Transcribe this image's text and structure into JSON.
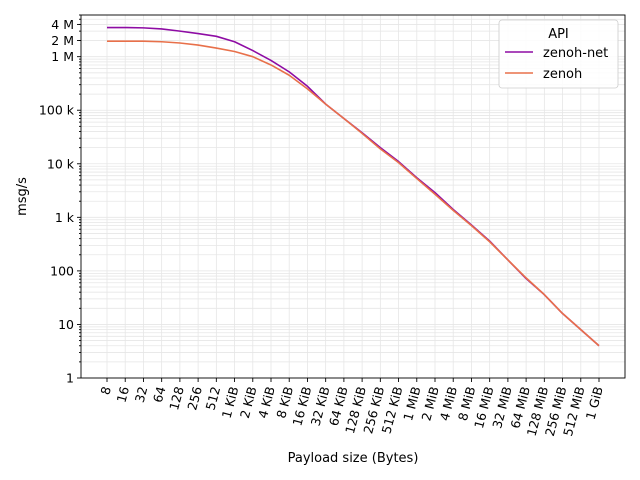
{
  "chart_data": {
    "type": "line",
    "title": "",
    "xlabel": "Payload size (Bytes)",
    "ylabel": "msg/s",
    "yscale": "log",
    "ylim": [
      1,
      6000000
    ],
    "grid": true,
    "legend": {
      "title": "API",
      "placement": "top-right"
    },
    "categories": [
      "8",
      "16",
      "32",
      "64",
      "128",
      "256",
      "512",
      "1 KiB",
      "2 KiB",
      "4 KiB",
      "8 KiB",
      "16 KiB",
      "32 KiB",
      "64 KiB",
      "128 KiB",
      "256 KiB",
      "512 KiB",
      "1 MiB",
      "2 MiB",
      "4 MiB",
      "8 MiB",
      "16 MiB",
      "32 MiB",
      "64 MiB",
      "128 MiB",
      "256 MiB",
      "512 MiB",
      "1 GiB"
    ],
    "y_ticks": [
      {
        "value": 1,
        "label": "1"
      },
      {
        "value": 10,
        "label": "10"
      },
      {
        "value": 100,
        "label": "100"
      },
      {
        "value": 1000,
        "label": "1 k"
      },
      {
        "value": 10000,
        "label": "10 k"
      },
      {
        "value": 100000,
        "label": "100 k"
      },
      {
        "value": 1000000,
        "label": "1 M"
      },
      {
        "value": 2000000,
        "label": "2 M"
      },
      {
        "value": 4000000,
        "label": "4 M"
      }
    ],
    "series": [
      {
        "name": "zenoh-net",
        "color": "#8e0ca4",
        "values": [
          3500000,
          3500000,
          3450000,
          3300000,
          3000000,
          2700000,
          2400000,
          1900000,
          1300000,
          850000,
          520000,
          280000,
          130000,
          70000,
          38000,
          20000,
          11000,
          5500,
          2900,
          1400,
          720,
          360,
          160,
          72,
          36,
          16,
          8,
          4
        ]
      },
      {
        "name": "zenoh",
        "color": "#e8704a",
        "values": [
          1950000,
          1950000,
          1950000,
          1900000,
          1800000,
          1650000,
          1450000,
          1250000,
          1000000,
          700000,
          450000,
          250000,
          130000,
          70000,
          37000,
          19000,
          10500,
          5300,
          2700,
          1350,
          700,
          350,
          160,
          74,
          36,
          16,
          8,
          4
        ]
      }
    ]
  }
}
